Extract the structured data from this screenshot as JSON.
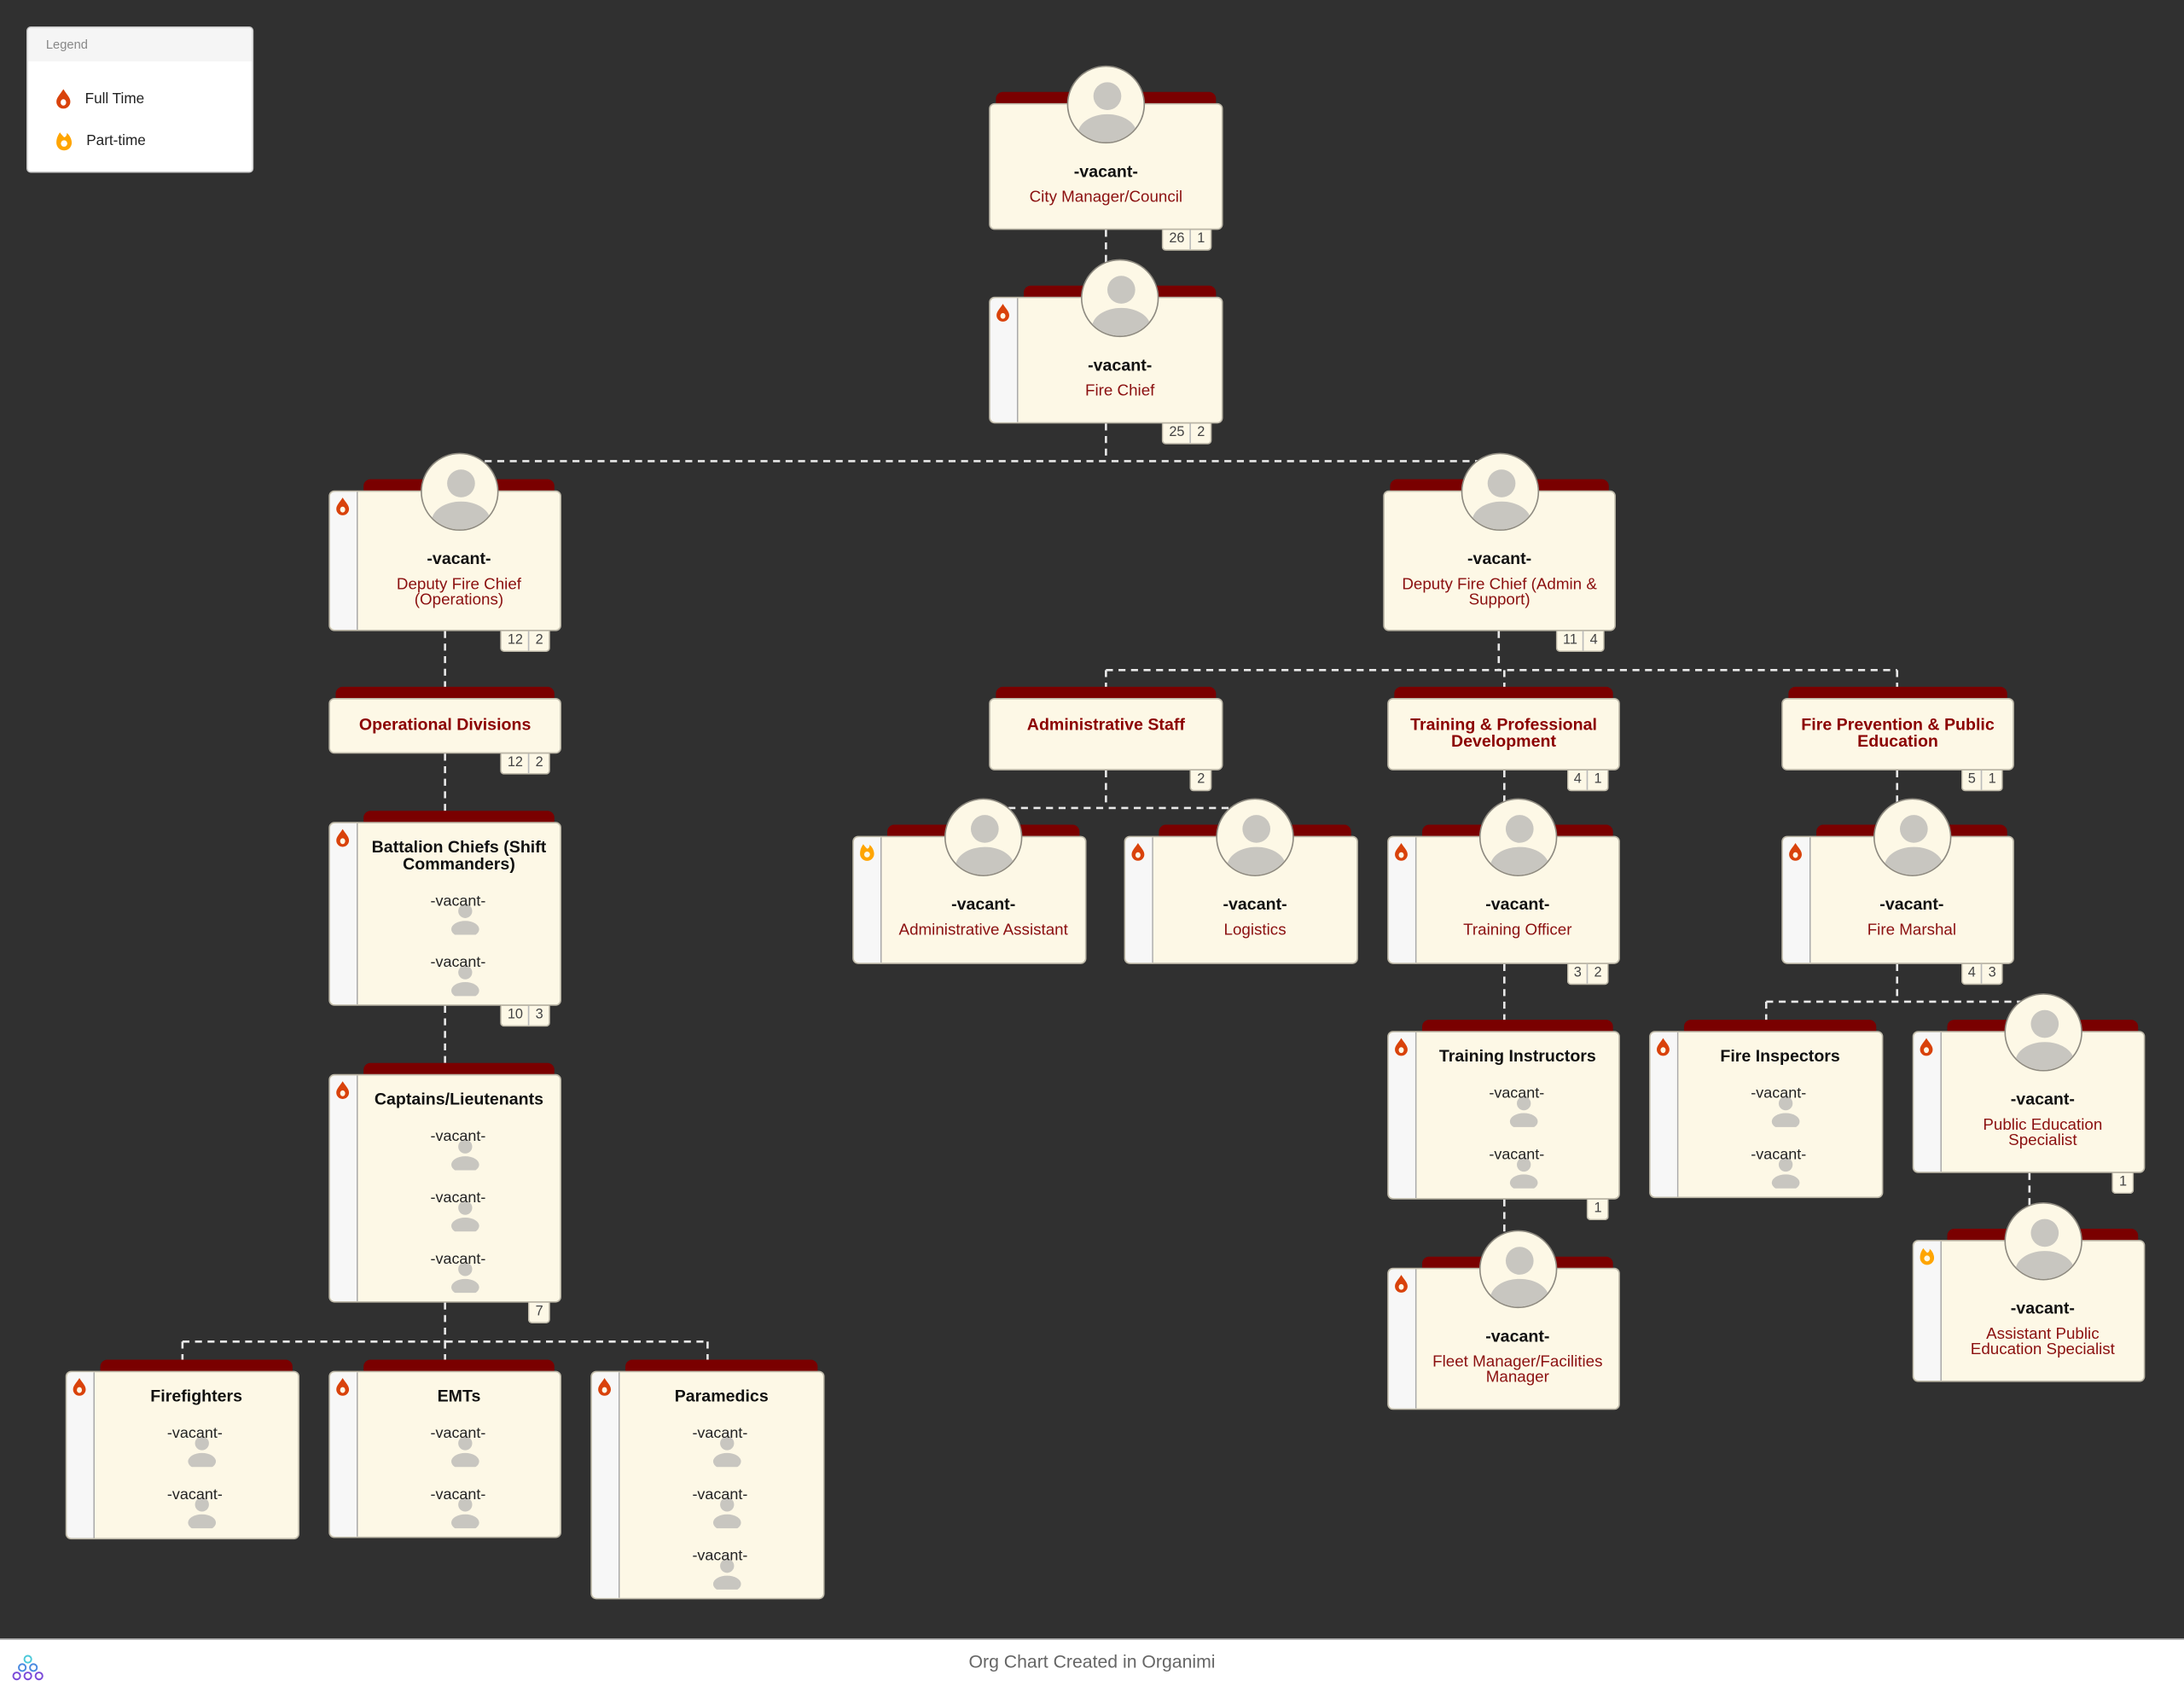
{
  "legend": {
    "title": "Legend",
    "items": [
      {
        "label": "Full Time",
        "icon": "flame-full-time-icon",
        "color": "#d9420b"
      },
      {
        "label": "Part-time",
        "icon": "flame-part-time-icon",
        "color": "#ffa500"
      }
    ]
  },
  "colors": {
    "background": "#303030",
    "card": "#fdf8e6",
    "accent": "#7a0000",
    "title": "#8b1010"
  },
  "nodes": [
    {
      "id": "city",
      "type": "person",
      "name": "-vacant-",
      "title": "City Manager/Council",
      "employment": null,
      "counts": [
        "26",
        "1"
      ]
    },
    {
      "id": "chief",
      "type": "person",
      "name": "-vacant-",
      "title": "Fire Chief",
      "employment": "full",
      "counts": [
        "25",
        "2"
      ]
    },
    {
      "id": "depops",
      "type": "person",
      "name": "-vacant-",
      "title": "Deputy Fire Chief (Operations)",
      "employment": "full",
      "counts": [
        "12",
        "2"
      ]
    },
    {
      "id": "depadmin",
      "type": "person",
      "name": "-vacant-",
      "title": "Deputy Fire Chief (Admin & Support)",
      "employment": null,
      "counts": [
        "11",
        "4"
      ]
    },
    {
      "id": "opdiv",
      "type": "dept",
      "title": "Operational Divisions",
      "counts": [
        "12",
        "2"
      ]
    },
    {
      "id": "adminstaff",
      "type": "dept",
      "title": "Administrative Staff",
      "counts": [
        "2"
      ]
    },
    {
      "id": "training",
      "type": "dept",
      "title": "Training & Professional Development",
      "counts": [
        "4",
        "1"
      ]
    },
    {
      "id": "prevention",
      "type": "dept",
      "title": "Fire Prevention & Public Education",
      "counts": [
        "5",
        "1"
      ]
    },
    {
      "id": "battalion",
      "type": "group",
      "title": "Battalion Chiefs (Shift Commanders)",
      "employment": "full",
      "members": [
        "-vacant-",
        "-vacant-"
      ],
      "counts": [
        "10",
        "3"
      ]
    },
    {
      "id": "captains",
      "type": "group",
      "title": "Captains/Lieutenants",
      "employment": "full",
      "members": [
        "-vacant-",
        "-vacant-",
        "-vacant-"
      ],
      "counts": [
        "7"
      ]
    },
    {
      "id": "firefighters",
      "type": "group",
      "title": "Firefighters",
      "employment": "full",
      "members": [
        "-vacant-",
        "-vacant-"
      ],
      "counts": []
    },
    {
      "id": "emts",
      "type": "group",
      "title": "EMTs",
      "employment": "full",
      "members": [
        "-vacant-",
        "-vacant-"
      ],
      "counts": []
    },
    {
      "id": "paramedics",
      "type": "group",
      "title": "Paramedics",
      "employment": "full",
      "members": [
        "-vacant-",
        "-vacant-",
        "-vacant-"
      ],
      "counts": []
    },
    {
      "id": "adminasst",
      "type": "person",
      "name": "-vacant-",
      "title": "Administrative Assistant",
      "employment": "part",
      "counts": []
    },
    {
      "id": "logistics",
      "type": "person",
      "name": "-vacant-",
      "title": "Logistics",
      "employment": "full",
      "counts": []
    },
    {
      "id": "trainoff",
      "type": "person",
      "name": "-vacant-",
      "title": "Training Officer",
      "employment": "full",
      "counts": [
        "3",
        "2"
      ]
    },
    {
      "id": "marshal",
      "type": "person",
      "name": "-vacant-",
      "title": "Fire Marshal",
      "employment": "full",
      "counts": [
        "4",
        "3"
      ]
    },
    {
      "id": "instructors",
      "type": "group",
      "title": "Training Instructors",
      "employment": "full",
      "members": [
        "-vacant-",
        "-vacant-"
      ],
      "counts": [
        "1"
      ]
    },
    {
      "id": "inspectors",
      "type": "group",
      "title": "Fire Inspectors",
      "employment": "full",
      "members": [
        "-vacant-",
        "-vacant-"
      ],
      "counts": []
    },
    {
      "id": "pubed",
      "type": "person",
      "name": "-vacant-",
      "title": "Public Education Specialist",
      "employment": "full",
      "counts": [
        "1"
      ]
    },
    {
      "id": "fleet",
      "type": "person",
      "name": "-vacant-",
      "title": "Fleet Manager/Facilities Manager",
      "employment": "full",
      "counts": []
    },
    {
      "id": "asstpubed",
      "type": "person",
      "name": "-vacant-",
      "title": "Assistant Public Education Specialist",
      "employment": "part",
      "counts": []
    }
  ],
  "footer": {
    "text": "Org Chart Created in Organimi",
    "logo": "organimi-logo"
  }
}
